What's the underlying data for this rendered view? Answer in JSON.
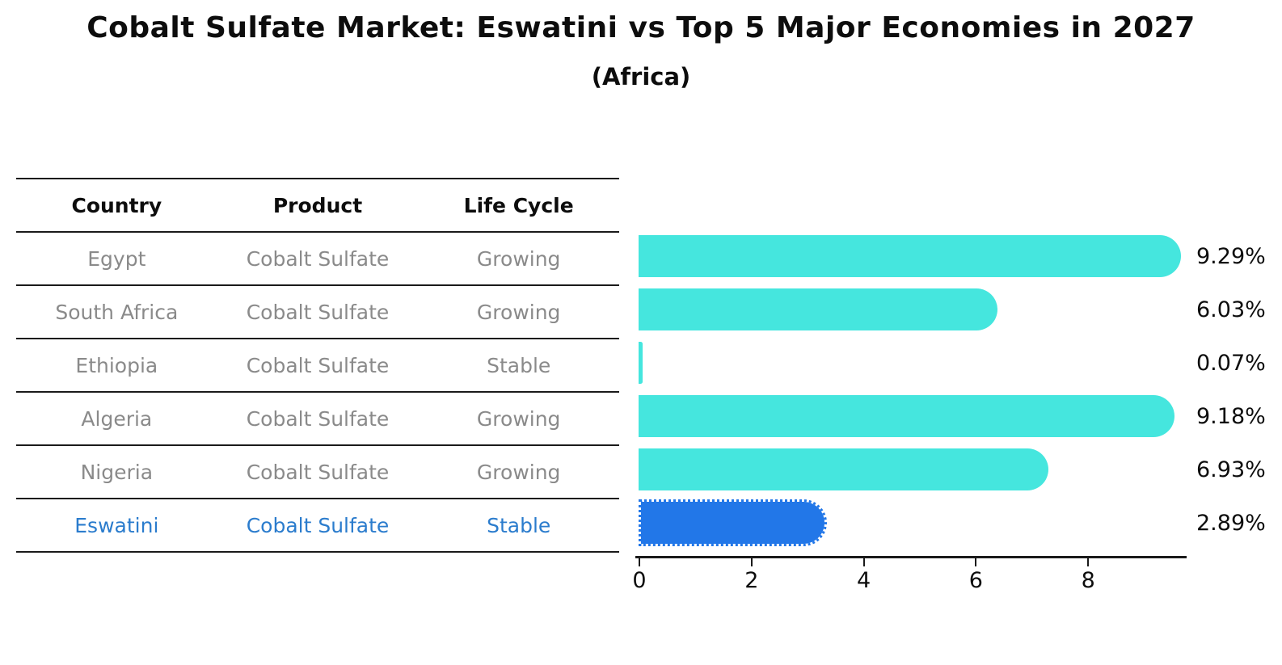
{
  "title": "Cobalt Sulfate Market: Eswatini vs Top 5 Major Economies in 2027",
  "subtitle": "(Africa)",
  "table": {
    "headers": [
      "Country",
      "Product",
      "Life Cycle"
    ],
    "rows": [
      {
        "country": "Egypt",
        "product": "Cobalt Sulfate",
        "life_cycle": "Growing",
        "highlight": false
      },
      {
        "country": "South Africa",
        "product": "Cobalt Sulfate",
        "life_cycle": "Growing",
        "highlight": false
      },
      {
        "country": "Ethiopia",
        "product": "Cobalt Sulfate",
        "life_cycle": "Stable",
        "highlight": false
      },
      {
        "country": "Algeria",
        "product": "Cobalt Sulfate",
        "life_cycle": "Growing",
        "highlight": false
      },
      {
        "country": "Nigeria",
        "product": "Cobalt Sulfate",
        "life_cycle": "Growing",
        "highlight": false
      },
      {
        "country": "Eswatini",
        "product": "Cobalt Sulfate",
        "life_cycle": "Stable",
        "highlight": true
      }
    ]
  },
  "chart_data": {
    "type": "bar",
    "orientation": "horizontal",
    "categories": [
      "Egypt",
      "South Africa",
      "Ethiopia",
      "Algeria",
      "Nigeria",
      "Eswatini"
    ],
    "values": [
      9.29,
      6.03,
      0.07,
      9.18,
      6.93,
      2.89
    ],
    "value_labels": [
      "9.29%",
      "6.03%",
      "0.07%",
      "9.18%",
      "6.93%",
      "2.89%"
    ],
    "highlight_index": 5,
    "x_ticks": [
      "0",
      "2",
      "4",
      "6",
      "8"
    ],
    "x_tick_values": [
      0,
      2,
      4,
      6,
      8
    ],
    "xlim": [
      0,
      9.77
    ],
    "grid": false,
    "legend": "none",
    "bar_color": "#45E6DE",
    "highlight_color": "#2277E8",
    "highlight_text_color": "#2b7ccd",
    "axis_color": "#1a1a1a",
    "table_text_color": "#8a8a8a"
  }
}
